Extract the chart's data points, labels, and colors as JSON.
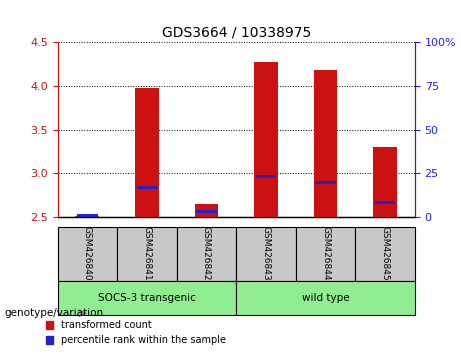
{
  "title": "GDS3664 / 10338975",
  "samples": [
    "GSM426840",
    "GSM426841",
    "GSM426842",
    "GSM426843",
    "GSM426844",
    "GSM426845"
  ],
  "red_values": [
    2.51,
    3.98,
    2.65,
    4.28,
    4.19,
    3.3
  ],
  "blue_values": [
    2.52,
    2.84,
    2.56,
    2.96,
    2.9,
    2.67
  ],
  "red_base": 2.5,
  "ylim": [
    2.5,
    4.5
  ],
  "yticks_left": [
    2.5,
    3.0,
    3.5,
    4.0,
    4.5
  ],
  "yticks_right": [
    0,
    25,
    50,
    75,
    100
  ],
  "ylim_right": [
    0,
    100
  ],
  "groups": [
    {
      "label": "SOCS-3 transgenic",
      "indices": [
        0,
        1,
        2
      ],
      "color": "#90EE90"
    },
    {
      "label": "wild type",
      "indices": [
        3,
        4,
        5
      ],
      "color": "#90EE90"
    }
  ],
  "group_separator": 2.5,
  "bar_width": 0.4,
  "red_color": "#CC1111",
  "blue_color": "#2222CC",
  "left_axis_color": "#CC1111",
  "right_axis_color": "#2222EE",
  "bg_color": "#FFFFFF",
  "tick_label_area_color": "#C8C8C8",
  "group_label_color": "#90EE90",
  "xlabel_left": "genotype/variation",
  "legend_red": "transformed count",
  "legend_blue": "percentile rank within the sample"
}
